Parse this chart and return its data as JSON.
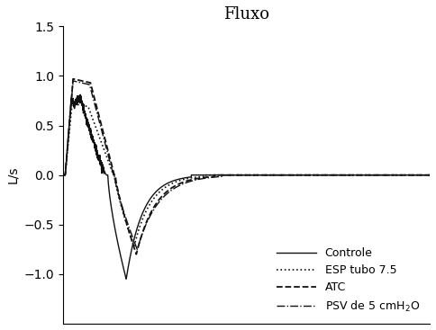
{
  "title": "Fluxo",
  "ylabel": "L/s",
  "ylim": [
    -1.5,
    1.5
  ],
  "yticks": [
    -1.0,
    -0.5,
    0.0,
    0.5,
    1.0,
    1.5
  ],
  "xlim": [
    0,
    8.0
  ],
  "background_color": "#ffffff",
  "title_fontsize": 13,
  "axis_fontsize": 10,
  "legend_fontsize": 9,
  "curves": {
    "controle": {
      "insp_peak": 0.78,
      "insp_rise_t": 0.18,
      "insp_peak_t": 0.38,
      "insp_dip": 0.05,
      "insp_end_t": 0.95,
      "exp_start_t": 0.98,
      "exp_peak": -1.05,
      "exp_peak_t": 1.38,
      "exp_end_t": 2.8,
      "noise_amp": 0.025
    },
    "esp": {
      "insp_peak": 0.72,
      "insp_rise_t": 0.2,
      "insp_peak_t": 0.55,
      "insp_end_t": 1.1,
      "exp_start_t": 1.12,
      "exp_peak": -0.72,
      "exp_peak_t": 1.55,
      "exp_end_t": 3.1
    },
    "atc": {
      "insp_peak": 0.97,
      "insp_rise_t": 0.22,
      "insp_peak_t": 0.6,
      "insp_end_t": 1.12,
      "exp_start_t": 1.14,
      "exp_peak": -0.8,
      "exp_peak_t": 1.6,
      "exp_end_t": 3.3
    },
    "psv": {
      "insp_peak": 0.95,
      "insp_rise_t": 0.22,
      "insp_peak_t": 0.58,
      "insp_end_t": 1.1,
      "exp_start_t": 1.12,
      "exp_peak": -0.75,
      "exp_peak_t": 1.62,
      "exp_end_t": 3.5
    }
  }
}
